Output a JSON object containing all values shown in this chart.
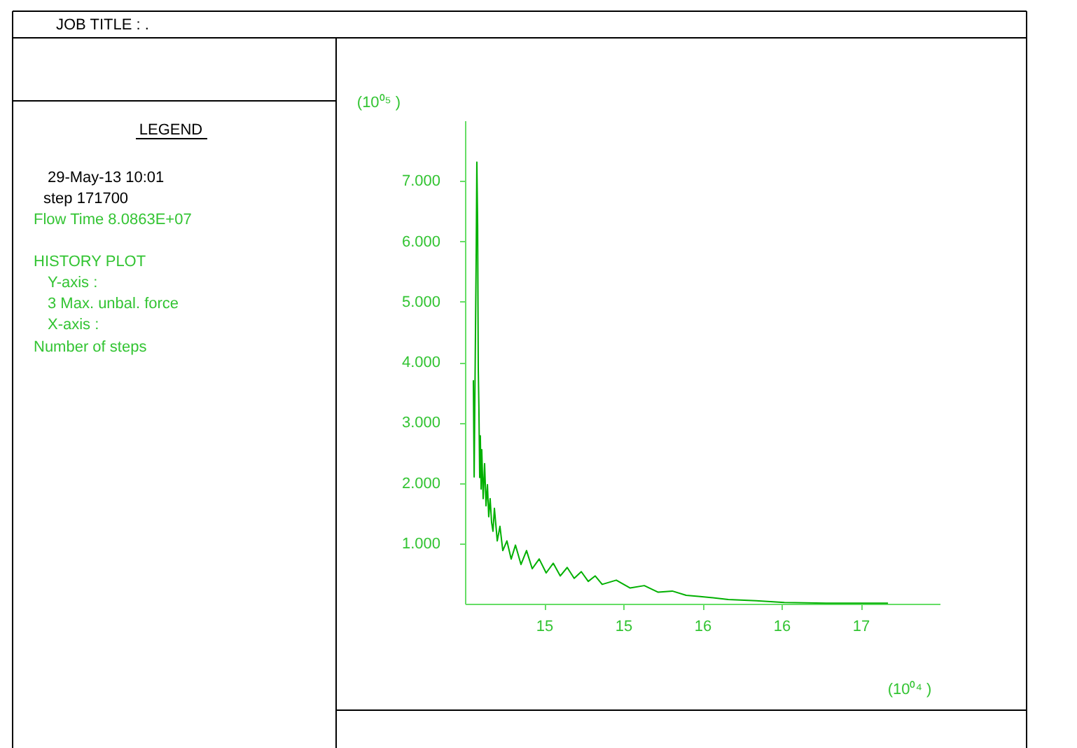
{
  "chart_data": {
    "type": "line",
    "xlabel": "(10⁰⁴ )",
    "ylabel": "(10⁰⁵ )",
    "annotations": [
      "JOB TITLE : .",
      "LEGEND",
      "29-May-13  10:01",
      "step    171700",
      "Flow Time     8.0863E+07",
      "HISTORY PLOT",
      "Y-axis :",
      "3 Max.  unbal.  force",
      "X-axis :",
      "Number of steps"
    ],
    "series": [
      {
        "color": "#00b000",
        "x": [
          14.353,
          14.358,
          14.371,
          14.375,
          14.38,
          14.384,
          14.388,
          14.393,
          14.397,
          14.402,
          14.406,
          14.415,
          14.424,
          14.433,
          14.442,
          14.45,
          14.459,
          14.468,
          14.477,
          14.486,
          14.504,
          14.521,
          14.539,
          14.565,
          14.592,
          14.619,
          14.654,
          14.689,
          14.725,
          14.769,
          14.813,
          14.858,
          14.902,
          14.946,
          14.99,
          15.035,
          15.079,
          15.123,
          15.167,
          15.256,
          15.344,
          15.433,
          15.521,
          15.61,
          15.698,
          15.787,
          15.964,
          16.141,
          16.318,
          16.583,
          16.973
        ],
        "values": [
          3.7,
          2.1,
          5.8,
          7.31,
          6.26,
          3.9,
          3.25,
          2.09,
          2.78,
          1.9,
          2.55,
          1.74,
          2.32,
          1.62,
          1.97,
          1.44,
          1.74,
          1.35,
          1.2,
          1.58,
          1.04,
          1.28,
          0.88,
          1.04,
          0.74,
          0.97,
          0.65,
          0.88,
          0.58,
          0.74,
          0.51,
          0.67,
          0.46,
          0.6,
          0.42,
          0.53,
          0.37,
          0.46,
          0.32,
          0.39,
          0.26,
          0.3,
          0.19,
          0.21,
          0.14,
          0.12,
          0.07,
          0.05,
          0.02,
          0.01,
          0.01
        ]
      }
    ],
    "xlim": [
      14.3,
      17.3
    ],
    "ylim": [
      0,
      8
    ],
    "xticks": [
      {
        "value": 14.8,
        "label": "15"
      },
      {
        "value": 15.3,
        "label": "15"
      },
      {
        "value": 15.8,
        "label": "16"
      },
      {
        "value": 16.3,
        "label": "16"
      },
      {
        "value": 16.8,
        "label": "17"
      }
    ],
    "yticks": [
      {
        "value": 1,
        "label": "1.000"
      },
      {
        "value": 2,
        "label": "2.000"
      },
      {
        "value": 3,
        "label": "3.000"
      },
      {
        "value": 4,
        "label": "4.000"
      },
      {
        "value": 5,
        "label": "5.000"
      },
      {
        "value": 6,
        "label": "6.000"
      },
      {
        "value": 7,
        "label": "7.000"
      }
    ],
    "grid": false,
    "marker": "none",
    "line_style": "solid"
  }
}
